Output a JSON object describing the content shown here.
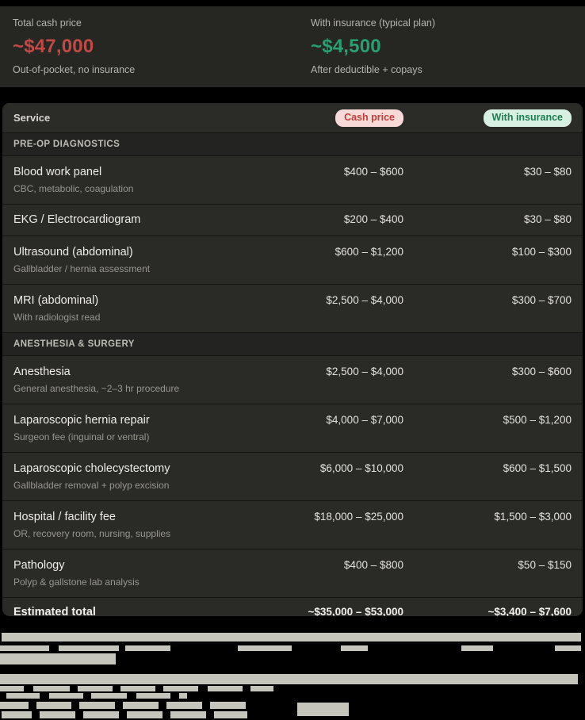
{
  "summary": {
    "cash": {
      "label": "Total cash price",
      "amount": "~$47,000",
      "note": "Out-of-pocket, no insurance"
    },
    "insurance": {
      "label": "With insurance (typical plan)",
      "amount": "~$4,500",
      "note": "After deductible + copays"
    }
  },
  "table": {
    "header": {
      "service": "Service",
      "cash_badge": "Cash price",
      "insurance_badge": "With insurance"
    },
    "sections": [
      {
        "label": "PRE-OP DIAGNOSTICS",
        "rows": [
          {
            "name": "Blood work panel",
            "desc": "CBC, metabolic, coagulation",
            "cash": "$400 – $600",
            "insurance": "$30 – $80"
          },
          {
            "name": "EKG / Electrocardiogram",
            "desc": "",
            "cash": "$200 – $400",
            "insurance": "$30 – $80"
          },
          {
            "name": "Ultrasound (abdominal)",
            "desc": "Gallbladder / hernia assessment",
            "cash": "$600 – $1,200",
            "insurance": "$100 – $300"
          },
          {
            "name": "MRI (abdominal)",
            "desc": "With radiologist read",
            "cash": "$2,500 – $4,000",
            "insurance": "$300 – $700"
          }
        ]
      },
      {
        "label": "ANESTHESIA & SURGERY",
        "rows": [
          {
            "name": "Anesthesia",
            "desc": "General anesthesia, ~2–3 hr procedure",
            "cash": "$2,500 – $4,000",
            "insurance": "$300 – $600"
          },
          {
            "name": "Laparoscopic hernia repair",
            "desc": "Surgeon fee (inguinal or ventral)",
            "cash": "$4,000 – $7,000",
            "insurance": "$500 – $1,200"
          },
          {
            "name": "Laparoscopic cholecystectomy",
            "desc": "Gallbladder removal + polyp excision",
            "cash": "$6,000 – $10,000",
            "insurance": "$600 – $1,500"
          },
          {
            "name": "Hospital / facility fee",
            "desc": "OR, recovery room, nursing, supplies",
            "cash": "$18,000 – $25,000",
            "insurance": "$1,500 – $3,000"
          },
          {
            "name": "Pathology",
            "desc": "Polyp & gallstone lab analysis",
            "cash": "$400 – $800",
            "insurance": "$50 – $150"
          }
        ]
      }
    ],
    "total": {
      "label": "Estimated total",
      "cash": "~$35,000 – $53,000",
      "insurance": "~$3,400 – $7,600"
    }
  },
  "colors": {
    "cash_accent": "#c04a45",
    "insurance_accent": "#2aa071",
    "cash_badge_bg": "#f7d9d8",
    "cash_badge_text": "#ba403a",
    "insurance_badge_bg": "#d7f0e2",
    "insurance_badge_text": "#1f7c50",
    "redacted": "#c6c5bc"
  },
  "redacted_blocks": [
    [
      2,
      3,
      731,
      11
    ],
    [
      0,
      19,
      62,
      7
    ],
    [
      74,
      19,
      76,
      7
    ],
    [
      158,
      19,
      57,
      7
    ],
    [
      300,
      19,
      68,
      7
    ],
    [
      430,
      19,
      34,
      7
    ],
    [
      582,
      19,
      40,
      7
    ],
    [
      700,
      19,
      33,
      7
    ],
    [
      0,
      29,
      146,
      14
    ],
    [
      0,
      55,
      729,
      13
    ],
    [
      0,
      70,
      30,
      7
    ],
    [
      42,
      70,
      46,
      7
    ],
    [
      98,
      70,
      44,
      7
    ],
    [
      152,
      70,
      44,
      7
    ],
    [
      206,
      70,
      44,
      7
    ],
    [
      262,
      70,
      44,
      7
    ],
    [
      316,
      70,
      29,
      7
    ],
    [
      8,
      79,
      42,
      7
    ],
    [
      62,
      79,
      43,
      7
    ],
    [
      115,
      79,
      45,
      7
    ],
    [
      172,
      79,
      43,
      7
    ],
    [
      226,
      79,
      10,
      7
    ],
    [
      0,
      90,
      36,
      9
    ],
    [
      46,
      90,
      44,
      9
    ],
    [
      100,
      90,
      45,
      9
    ],
    [
      155,
      90,
      45,
      9
    ],
    [
      210,
      90,
      45,
      9
    ],
    [
      265,
      90,
      45,
      9
    ],
    [
      375,
      91,
      65,
      17
    ],
    [
      2,
      102,
      38,
      9
    ],
    [
      50,
      102,
      45,
      9
    ],
    [
      105,
      102,
      45,
      9
    ],
    [
      160,
      102,
      45,
      9
    ],
    [
      215,
      102,
      45,
      9
    ],
    [
      270,
      102,
      42,
      9
    ]
  ]
}
